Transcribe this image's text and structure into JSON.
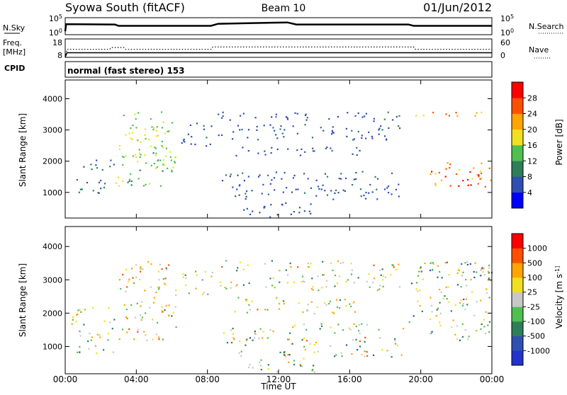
{
  "header": {
    "station": "Syowa South (fitACF)",
    "beam": "Beam 10",
    "date": "01/Jun/2012"
  },
  "chart_data": [
    {
      "type": "line",
      "panel": "noise",
      "left_label": "N.Sky",
      "left_ticks": [
        "10^5",
        "10^0"
      ],
      "right_label": "N.Search",
      "right_ticks": [
        "10^5",
        "10^0"
      ],
      "series": [
        {
          "name": "N.Sky",
          "style": "solid",
          "x": [
            0,
            0.05,
            2.8,
            3.0,
            8.2,
            8.6,
            12.5,
            13.0,
            19.3,
            19.6,
            24
          ],
          "y": [
            1.0,
            3.1,
            3.0,
            2.6,
            2.6,
            3.2,
            3.6,
            3.0,
            3.0,
            2.6,
            2.6
          ]
        }
      ],
      "ylim": [
        0,
        5
      ]
    },
    {
      "type": "line",
      "panel": "frequency",
      "left_label": "Freq.",
      "left_unit": "[MHz]",
      "left_ticks": [
        "18",
        "8"
      ],
      "right_label": "Nave",
      "right_ticks": [
        "60",
        "0"
      ],
      "series": [
        {
          "name": "Freq.",
          "style": "solid",
          "x": [
            0,
            0.1,
            24
          ],
          "y": [
            8,
            10.5,
            10.5
          ]
        },
        {
          "name": "Nave",
          "style": "dotted",
          "x": [
            0,
            0.1,
            2.5,
            2.6,
            3.3,
            3.4,
            8.2,
            8.3,
            19.6,
            19.7,
            24
          ],
          "y": [
            0,
            26,
            26,
            32,
            32,
            26,
            26,
            34,
            34,
            26,
            26
          ]
        }
      ]
    },
    {
      "type": "text",
      "panel": "cpid",
      "label": "CPID",
      "value": "normal (fast stereo) 153"
    },
    {
      "type": "heatmap",
      "panel": "power",
      "ylabel": "Slant Range [km]",
      "yticks": [
        1000,
        2000,
        3000,
        4000
      ],
      "ylim": [
        180,
        4600
      ],
      "xlim": [
        0,
        24
      ],
      "colorbar": {
        "label": "Power [dB]",
        "ticks": [
          "28",
          "24",
          "20",
          "16",
          "12",
          "8",
          "4"
        ],
        "colors": [
          "#0000ff",
          "#2f4fb3",
          "#2e7d5b",
          "#4fc04f",
          "#f0e020",
          "#ffa500",
          "#ff5000",
          "#ff0000"
        ]
      },
      "clusters": [
        {
          "t": [
            0.3,
            2.2
          ],
          "r": [
            900,
            1500
          ],
          "v": [
            6,
            10
          ]
        },
        {
          "t": [
            1.0,
            2.8
          ],
          "r": [
            1700,
            2200
          ],
          "v": [
            6,
            10
          ]
        },
        {
          "t": [
            3.0,
            6.0
          ],
          "r": [
            2000,
            3600
          ],
          "v": [
            12,
            20
          ]
        },
        {
          "t": [
            2.8,
            6.2
          ],
          "r": [
            1200,
            2400
          ],
          "v": [
            10,
            18
          ]
        },
        {
          "t": [
            6.5,
            8.3
          ],
          "r": [
            2500,
            3300
          ],
          "v": [
            5,
            10
          ]
        },
        {
          "t": [
            8.5,
            19.0
          ],
          "r": [
            3300,
            3600
          ],
          "v": [
            4,
            9
          ]
        },
        {
          "t": [
            8.5,
            18.8
          ],
          "r": [
            2700,
            3200
          ],
          "v": [
            4,
            9
          ]
        },
        {
          "t": [
            9.5,
            17.0
          ],
          "r": [
            2200,
            2500
          ],
          "v": [
            4,
            9
          ]
        },
        {
          "t": [
            8.8,
            19.0
          ],
          "r": [
            1400,
            1700
          ],
          "v": [
            4,
            9
          ]
        },
        {
          "t": [
            9.0,
            19.0
          ],
          "r": [
            800,
            1300
          ],
          "v": [
            4,
            9
          ]
        },
        {
          "t": [
            10.0,
            14.0
          ],
          "r": [
            200,
            700
          ],
          "v": [
            4,
            8
          ]
        },
        {
          "t": [
            19.3,
            24.0
          ],
          "r": [
            3400,
            3600
          ],
          "v": [
            18,
            28
          ]
        },
        {
          "t": [
            20.5,
            24.0
          ],
          "r": [
            1200,
            2000
          ],
          "v": [
            18,
            30
          ]
        },
        {
          "t": [
            21.8,
            23.5
          ],
          "r": [
            1500,
            1700
          ],
          "v": [
            26,
            31
          ]
        }
      ]
    },
    {
      "type": "heatmap",
      "panel": "velocity",
      "ylabel": "Slant Range [km]",
      "xlabel": "Time UT",
      "xticks": [
        "00:00",
        "04:00",
        "08:00",
        "12:00",
        "16:00",
        "20:00",
        "00:00"
      ],
      "yticks": [
        1000,
        2000,
        3000,
        4000
      ],
      "ylim": [
        180,
        4600
      ],
      "xlim": [
        0,
        24
      ],
      "colorbar": {
        "label": "Velocity [m s^-1]",
        "ticks": [
          "1000",
          "500",
          "100",
          "25",
          "-25",
          "-100",
          "-500",
          "-1000"
        ],
        "colors": [
          "#2233cc",
          "#2f4fb3",
          "#2e7d5b",
          "#4fc04f",
          "#c8c8c8",
          "#f0e020",
          "#ffa500",
          "#ff5000",
          "#ff0000"
        ]
      },
      "clusters": [
        {
          "t": [
            0.3,
            2.8
          ],
          "r": [
            800,
            2200
          ],
          "v": [
            -0.5,
            0.5
          ]
        },
        {
          "t": [
            3.0,
            6.2
          ],
          "r": [
            1200,
            3600
          ],
          "v": [
            -0.8,
            0.4
          ]
        },
        {
          "t": [
            6.5,
            8.3
          ],
          "r": [
            2500,
            3300
          ],
          "v": [
            -0.5,
            0.5
          ]
        },
        {
          "t": [
            8.5,
            19.0
          ],
          "r": [
            3300,
            3600
          ],
          "v": [
            -0.7,
            0.6
          ]
        },
        {
          "t": [
            8.5,
            19.0
          ],
          "r": [
            2700,
            3200
          ],
          "v": [
            -0.6,
            0.6
          ]
        },
        {
          "t": [
            9.5,
            17.0
          ],
          "r": [
            2000,
            2500
          ],
          "v": [
            -0.7,
            0.5
          ]
        },
        {
          "t": [
            8.8,
            19.0
          ],
          "r": [
            1400,
            1700
          ],
          "v": [
            -0.5,
            0.5
          ]
        },
        {
          "t": [
            9.0,
            19.0
          ],
          "r": [
            700,
            1300
          ],
          "v": [
            -0.8,
            0.7
          ]
        },
        {
          "t": [
            10.0,
            14.0
          ],
          "r": [
            200,
            700
          ],
          "v": [
            -0.5,
            0.5
          ]
        },
        {
          "t": [
            19.3,
            24.0
          ],
          "r": [
            1200,
            3600
          ],
          "v": [
            -0.6,
            0.8
          ]
        }
      ]
    }
  ]
}
